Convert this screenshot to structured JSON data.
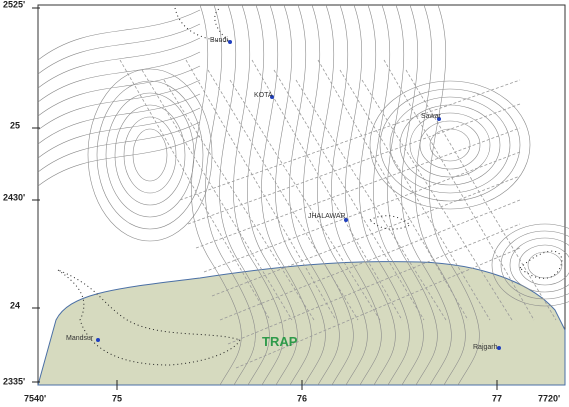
{
  "map": {
    "y_labels": [
      "2525'",
      "25",
      "2430'",
      "24",
      "2335'"
    ],
    "x_labels": [
      "7540'",
      "75",
      "76",
      "77",
      "7720'"
    ],
    "places": [
      "Bundi",
      "KOTA",
      "Sawar",
      "JHALAWAR",
      "Mandsur",
      "Rajgarh"
    ],
    "region_label": "TRAP"
  }
}
